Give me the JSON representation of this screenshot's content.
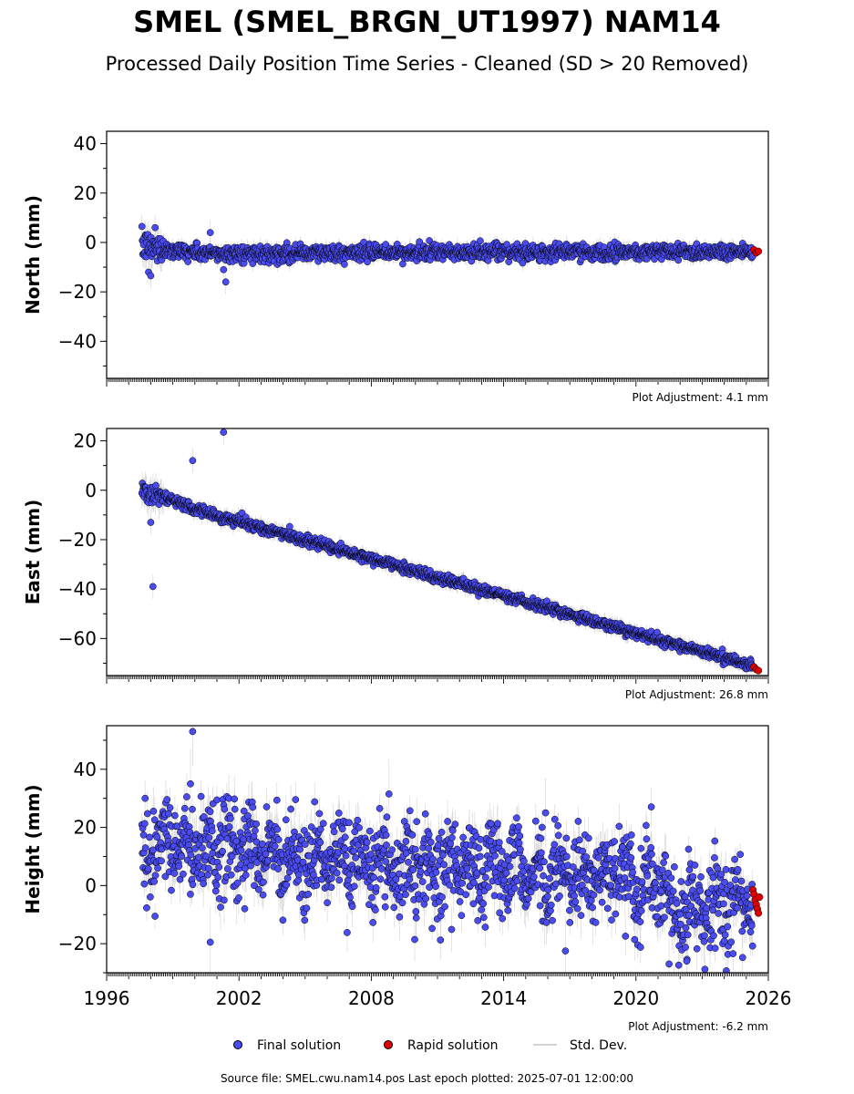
{
  "title": "SMEL (SMEL_BRGN_UT1997) NAM14",
  "subtitle": "Processed Daily Position Time Series - Cleaned (SD > 20 Removed)",
  "colors": {
    "final": "#4a4cf0",
    "rapid": "#e00000",
    "stddev": "#b8b8b8",
    "edge": "#000000"
  },
  "legend": {
    "final_label": "Final solution",
    "rapid_label": "Rapid solution",
    "std_label": "Std. Dev."
  },
  "footer": "Source file: SMEL.cwu.nam14.pos  Last epoch plotted: 2025-07-01 12:00:00",
  "chart_data": [
    {
      "type": "scatter",
      "component": "north",
      "ylabel": "North (mm)",
      "xlim": [
        1996,
        2026
      ],
      "ylim": [
        -55,
        45
      ],
      "yticks": [
        -40,
        -20,
        0,
        20,
        40
      ],
      "xticks": [
        1996,
        2002,
        2008,
        2014,
        2020,
        2026
      ],
      "show_xtick_labels": false,
      "adjustment": "Plot Adjustment: 4.1 mm",
      "trend": {
        "start": [
          1997.6,
          -1.5
        ],
        "mid": [
          2000.5,
          -4.5
        ],
        "end": [
          2025.5,
          -3.5
        ]
      },
      "noise": 1.6,
      "sd": 2.5,
      "outliers": [
        [
          1998.2,
          6
        ],
        [
          2000.7,
          4
        ],
        [
          1997.9,
          -12
        ],
        [
          1998.0,
          -13.5
        ],
        [
          2001.3,
          -11
        ],
        [
          2001.4,
          -16
        ]
      ],
      "rapid": [
        [
          2025.35,
          -3.0
        ],
        [
          2025.45,
          -4.2
        ],
        [
          2025.55,
          -3.6
        ]
      ]
    },
    {
      "type": "scatter",
      "component": "east",
      "ylabel": "East (mm)",
      "xlim": [
        1996,
        2026
      ],
      "ylim": [
        -75,
        25
      ],
      "yticks": [
        -60,
        -40,
        -20,
        0,
        20
      ],
      "xticks": [
        1996,
        2002,
        2008,
        2014,
        2020,
        2026
      ],
      "show_xtick_labels": false,
      "adjustment": "Plot Adjustment: 26.8 mm",
      "trend": {
        "start": [
          1997.6,
          0
        ],
        "mid": [
          2000.5,
          -9
        ],
        "end": [
          2025.5,
          -71.5
        ]
      },
      "noise": 1.0,
      "sd": 2.5,
      "outliers": [
        [
          1998.1,
          -39
        ],
        [
          1998.0,
          -13
        ],
        [
          1999.9,
          12
        ],
        [
          2001.3,
          23.5
        ]
      ],
      "rapid": [
        [
          2025.35,
          -71.5
        ],
        [
          2025.45,
          -72.5
        ],
        [
          2025.55,
          -73
        ]
      ]
    },
    {
      "type": "scatter",
      "component": "height",
      "ylabel": "Height (mm)",
      "xlim": [
        1996,
        2026
      ],
      "ylim": [
        -30,
        55
      ],
      "yticks": [
        -20,
        0,
        20,
        40
      ],
      "xticks": [
        1996,
        2002,
        2008,
        2014,
        2020,
        2026
      ],
      "show_xtick_labels": true,
      "adjustment": "Plot Adjustment: -6.2 mm",
      "trend": {
        "start": [
          1997.6,
          12
        ],
        "mid": [
          2008,
          8
        ],
        "end": [
          2021,
          2
        ]
      },
      "noise": 7.5,
      "sd": 6,
      "anomaly": {
        "from": 2021.0,
        "to": 2025.6,
        "level": -7
      },
      "outliers": [
        [
          1999.9,
          53
        ],
        [
          1999.8,
          35
        ],
        [
          2008.8,
          31.5
        ],
        [
          2015.9,
          25
        ],
        [
          2000.7,
          -19.5
        ],
        [
          2016.8,
          -22.5
        ],
        [
          2021.5,
          -27
        ],
        [
          2022.3,
          -26
        ]
      ],
      "rapid": [
        [
          2025.3,
          -1.5
        ],
        [
          2025.35,
          -3
        ],
        [
          2025.4,
          -5
        ],
        [
          2025.45,
          -6.5
        ],
        [
          2025.5,
          -8
        ],
        [
          2025.55,
          -9.5
        ],
        [
          2025.6,
          -4
        ]
      ]
    }
  ]
}
